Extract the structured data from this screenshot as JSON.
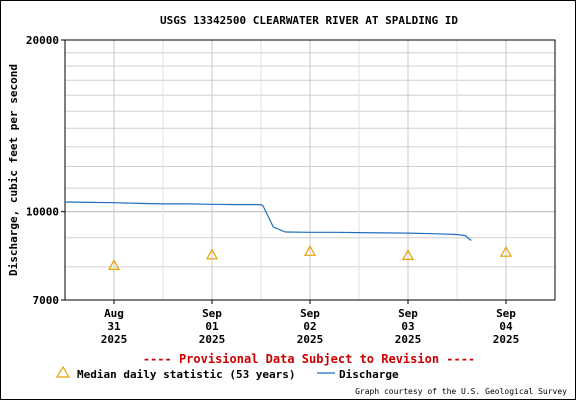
{
  "chart_data": {
    "type": "line",
    "title": "USGS 13342500 CLEARWATER RIVER AT SPALDING ID",
    "ylabel": "Discharge, cubic feet per second",
    "xlabel": "",
    "y_scale": "log",
    "ylim": [
      7000,
      20000
    ],
    "y_ticks": [
      {
        "value": 7000,
        "label": "7000"
      },
      {
        "value": 10000,
        "label": "10000"
      },
      {
        "value": 20000,
        "label": "20000"
      }
    ],
    "xlim": [
      "2025-08-30T12:00",
      "2025-09-04T12:00"
    ],
    "x_ticks": [
      {
        "at": "2025-08-31T00:00",
        "lines": [
          "Aug",
          "31",
          "2025"
        ]
      },
      {
        "at": "2025-09-01T00:00",
        "lines": [
          "Sep",
          "01",
          "2025"
        ]
      },
      {
        "at": "2025-09-02T00:00",
        "lines": [
          "Sep",
          "02",
          "2025"
        ]
      },
      {
        "at": "2025-09-03T00:00",
        "lines": [
          "Sep",
          "03",
          "2025"
        ]
      },
      {
        "at": "2025-09-04T00:00",
        "lines": [
          "Sep",
          "04",
          "2025"
        ]
      }
    ],
    "grid": true,
    "series": [
      {
        "name": "Discharge",
        "color": "#1f6fbf",
        "points": [
          [
            "2025-08-30T12:00",
            10400
          ],
          [
            "2025-08-30T18:00",
            10380
          ],
          [
            "2025-08-31T00:00",
            10370
          ],
          [
            "2025-08-31T06:00",
            10340
          ],
          [
            "2025-08-31T12:00",
            10320
          ],
          [
            "2025-08-31T18:00",
            10320
          ],
          [
            "2025-09-01T00:00",
            10300
          ],
          [
            "2025-09-01T06:00",
            10290
          ],
          [
            "2025-09-01T12:00",
            10290
          ],
          [
            "2025-09-01T12:30",
            10240
          ],
          [
            "2025-09-01T15:00",
            9400
          ],
          [
            "2025-09-01T18:00",
            9210
          ],
          [
            "2025-09-02T00:00",
            9200
          ],
          [
            "2025-09-02T06:00",
            9200
          ],
          [
            "2025-09-02T12:00",
            9190
          ],
          [
            "2025-09-02T18:00",
            9180
          ],
          [
            "2025-09-03T00:00",
            9170
          ],
          [
            "2025-09-03T06:00",
            9150
          ],
          [
            "2025-09-03T12:00",
            9120
          ],
          [
            "2025-09-03T14:00",
            9080
          ],
          [
            "2025-09-03T15:30",
            8900
          ]
        ]
      },
      {
        "name": "Median daily statistic (53 years)",
        "color": "#e6a000",
        "marker": "triangle",
        "points": [
          [
            "2025-08-31T00:00",
            8050
          ],
          [
            "2025-09-01T00:00",
            8400
          ],
          [
            "2025-09-02T00:00",
            8520
          ],
          [
            "2025-09-03T00:00",
            8380
          ],
          [
            "2025-09-04T00:00",
            8490
          ]
        ]
      }
    ],
    "legend_position": "bottom-left",
    "provisional_note": "---- Provisional Data Subject to Revision ----",
    "credit": "Graph courtesy of the U.S. Geological Survey"
  }
}
